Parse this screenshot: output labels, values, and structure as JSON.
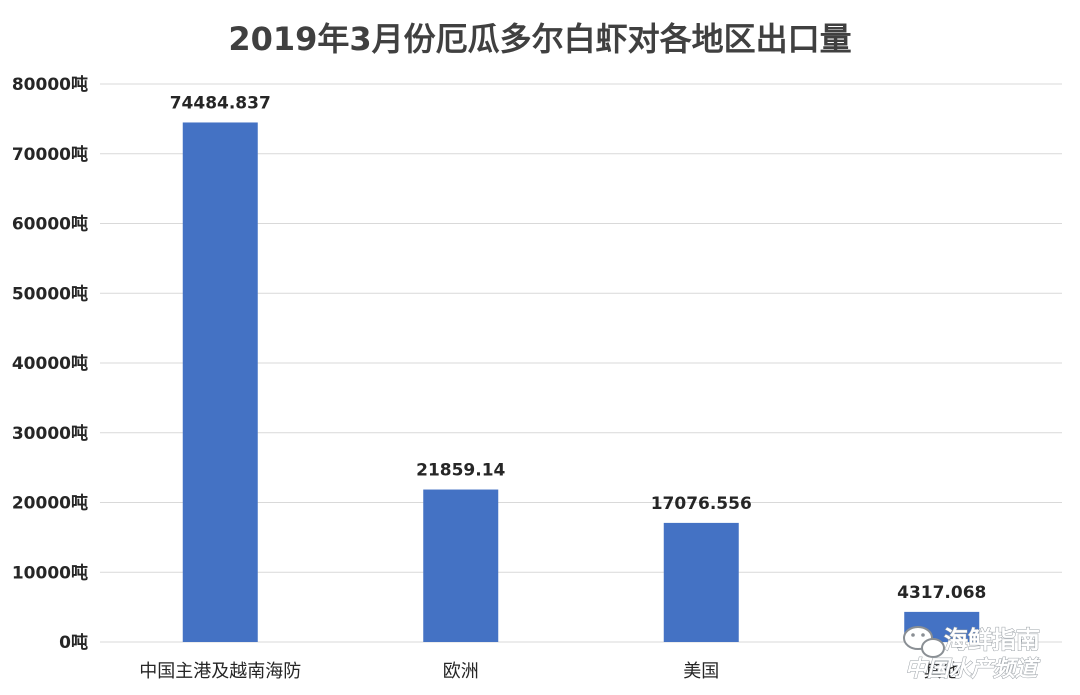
{
  "chart_data": {
    "type": "bar",
    "title": "2019年3月份厄瓜多尔白虾对各地区出口量",
    "categories": [
      "中国主港及越南海防",
      "欧洲",
      "美国",
      "其他"
    ],
    "values": [
      74484.837,
      21859.14,
      17076.556,
      4317.068
    ],
    "value_labels": [
      "74484.837",
      "21859.14",
      "17076.556",
      "4317.068"
    ],
    "ylim": [
      0,
      80000
    ],
    "yticks": [
      0,
      10000,
      20000,
      30000,
      40000,
      50000,
      60000,
      70000,
      80000
    ],
    "ytick_labels": [
      "0吨",
      "10000吨",
      "20000吨",
      "30000吨",
      "40000吨",
      "50000吨",
      "60000吨",
      "70000吨",
      "80000吨"
    ],
    "grid": true,
    "legend": "none",
    "bar_color": "#4472c4"
  },
  "watermark": {
    "line1": "海鲜指南",
    "line2": "中国水产频道"
  }
}
